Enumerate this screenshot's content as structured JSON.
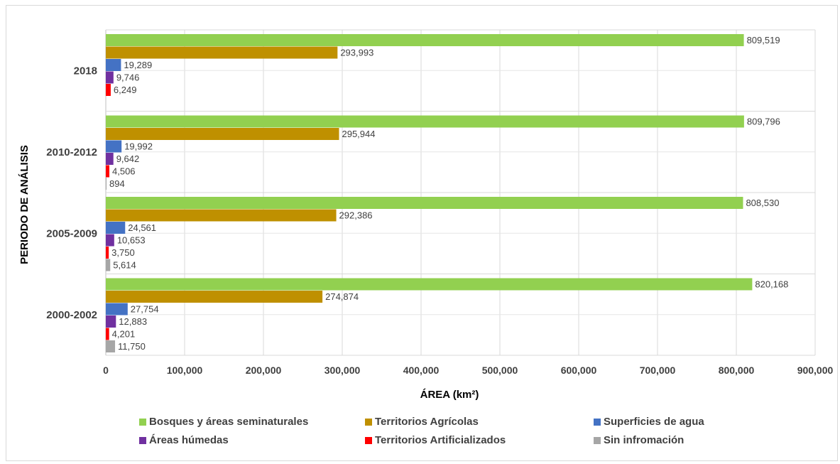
{
  "chart_data": {
    "type": "bar",
    "orientation": "horizontal",
    "categories": [
      "2018",
      "2010-2012",
      "2005-2009",
      "2000-2002"
    ],
    "series": [
      {
        "name": "Bosques y áreas seminaturales",
        "color": "#92d050",
        "values": [
          809519,
          809796,
          808530,
          820168
        ],
        "labels": [
          "809,519",
          "809,796",
          "808,530",
          "820,168"
        ]
      },
      {
        "name": "Territorios Agrícolas",
        "color": "#bf9000",
        "values": [
          293993,
          295944,
          292386,
          274874
        ],
        "labels": [
          "293,993",
          "295,944",
          "292,386",
          "274,874"
        ]
      },
      {
        "name": "Superficies de agua",
        "color": "#4472c4",
        "values": [
          19289,
          19992,
          24561,
          27754
        ],
        "labels": [
          "19,289",
          "19,992",
          "24,561",
          "27,754"
        ]
      },
      {
        "name": "Áreas húmedas",
        "color": "#7030a0",
        "values": [
          9746,
          9642,
          10653,
          12883
        ],
        "labels": [
          "9,746",
          "9,642",
          "10,653",
          "12,883"
        ]
      },
      {
        "name": "Territorios Artificializados",
        "color": "#ff0000",
        "values": [
          6249,
          4506,
          3750,
          4201
        ],
        "labels": [
          "6,249",
          "4,506",
          "3,750",
          "4,201"
        ]
      },
      {
        "name": "Sin infromación",
        "color": "#a6a6a6",
        "values": [
          null,
          894,
          5614,
          11750
        ],
        "labels": [
          "",
          "894",
          "5,614",
          "11,750"
        ]
      }
    ],
    "xlabel": "ÁREA (km²)",
    "ylabel": "PERIODO DE ANÁLISIS",
    "xlim": [
      0,
      900000
    ],
    "xticks": [
      "0",
      "100,000",
      "200,000",
      "300,000",
      "400,000",
      "500,000",
      "600,000",
      "700,000",
      "800,000",
      "900,000"
    ],
    "grid": true,
    "legend_position": "bottom"
  }
}
